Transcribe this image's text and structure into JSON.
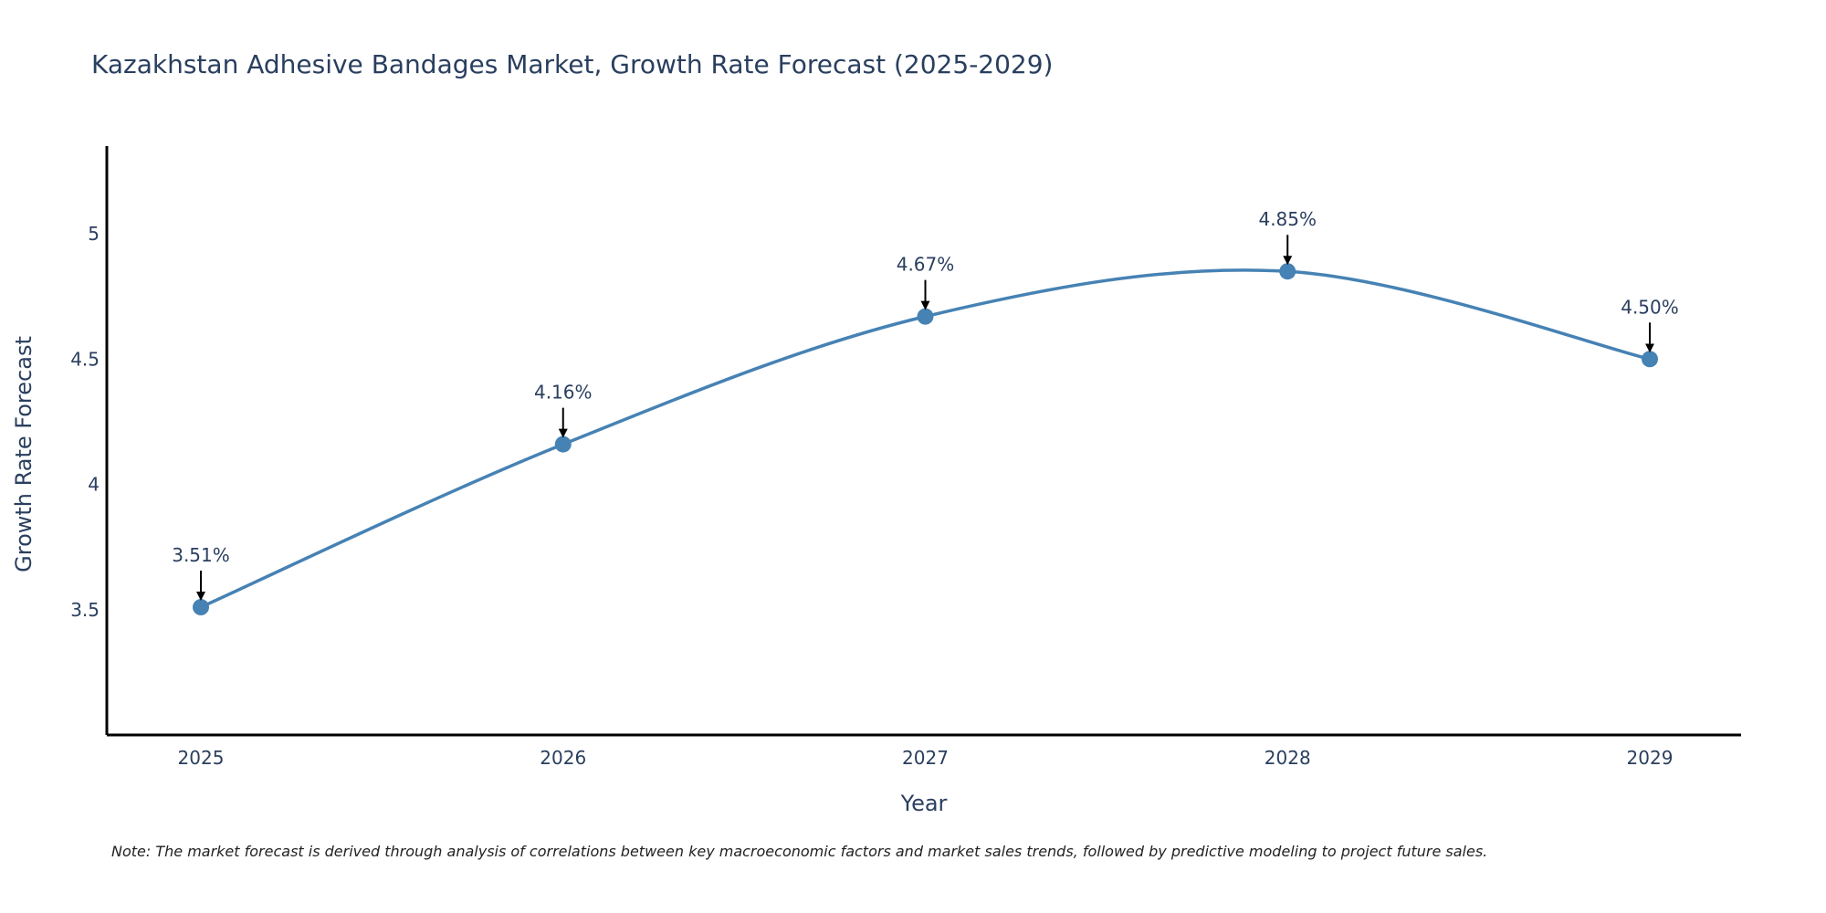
{
  "chart_data": {
    "type": "line",
    "title": "Kazakhstan Adhesive Bandages Market, Growth Rate Forecast (2025-2029)",
    "xlabel": "Year",
    "ylabel": "Growth Rate Forecast",
    "categories": [
      "2025",
      "2026",
      "2027",
      "2028",
      "2029"
    ],
    "series": [
      {
        "name": "Growth Rate Forecast",
        "values": [
          3.51,
          4.16,
          4.67,
          4.85,
          4.5
        ],
        "labels": [
          "3.51%",
          "4.16%",
          "4.67%",
          "4.85%",
          "4.50%"
        ]
      }
    ],
    "ylim": [
      3.0,
      5.35
    ],
    "yticks": [
      3.5,
      4,
      4.5,
      5
    ],
    "ytick_labels": [
      "3.5",
      "4",
      "4.5",
      "5"
    ],
    "line_shape": "spline",
    "grid": false,
    "legend": "none",
    "note": "Note: The market forecast is derived through analysis of correlations between key macroeconomic factors and market sales trends, followed by predictive modeling to project future sales.",
    "colors": {
      "line": "#4682b4",
      "marker": "#4682b4",
      "arrow": "#000000",
      "axis": "#000000",
      "text": "#2a3f5f"
    }
  }
}
